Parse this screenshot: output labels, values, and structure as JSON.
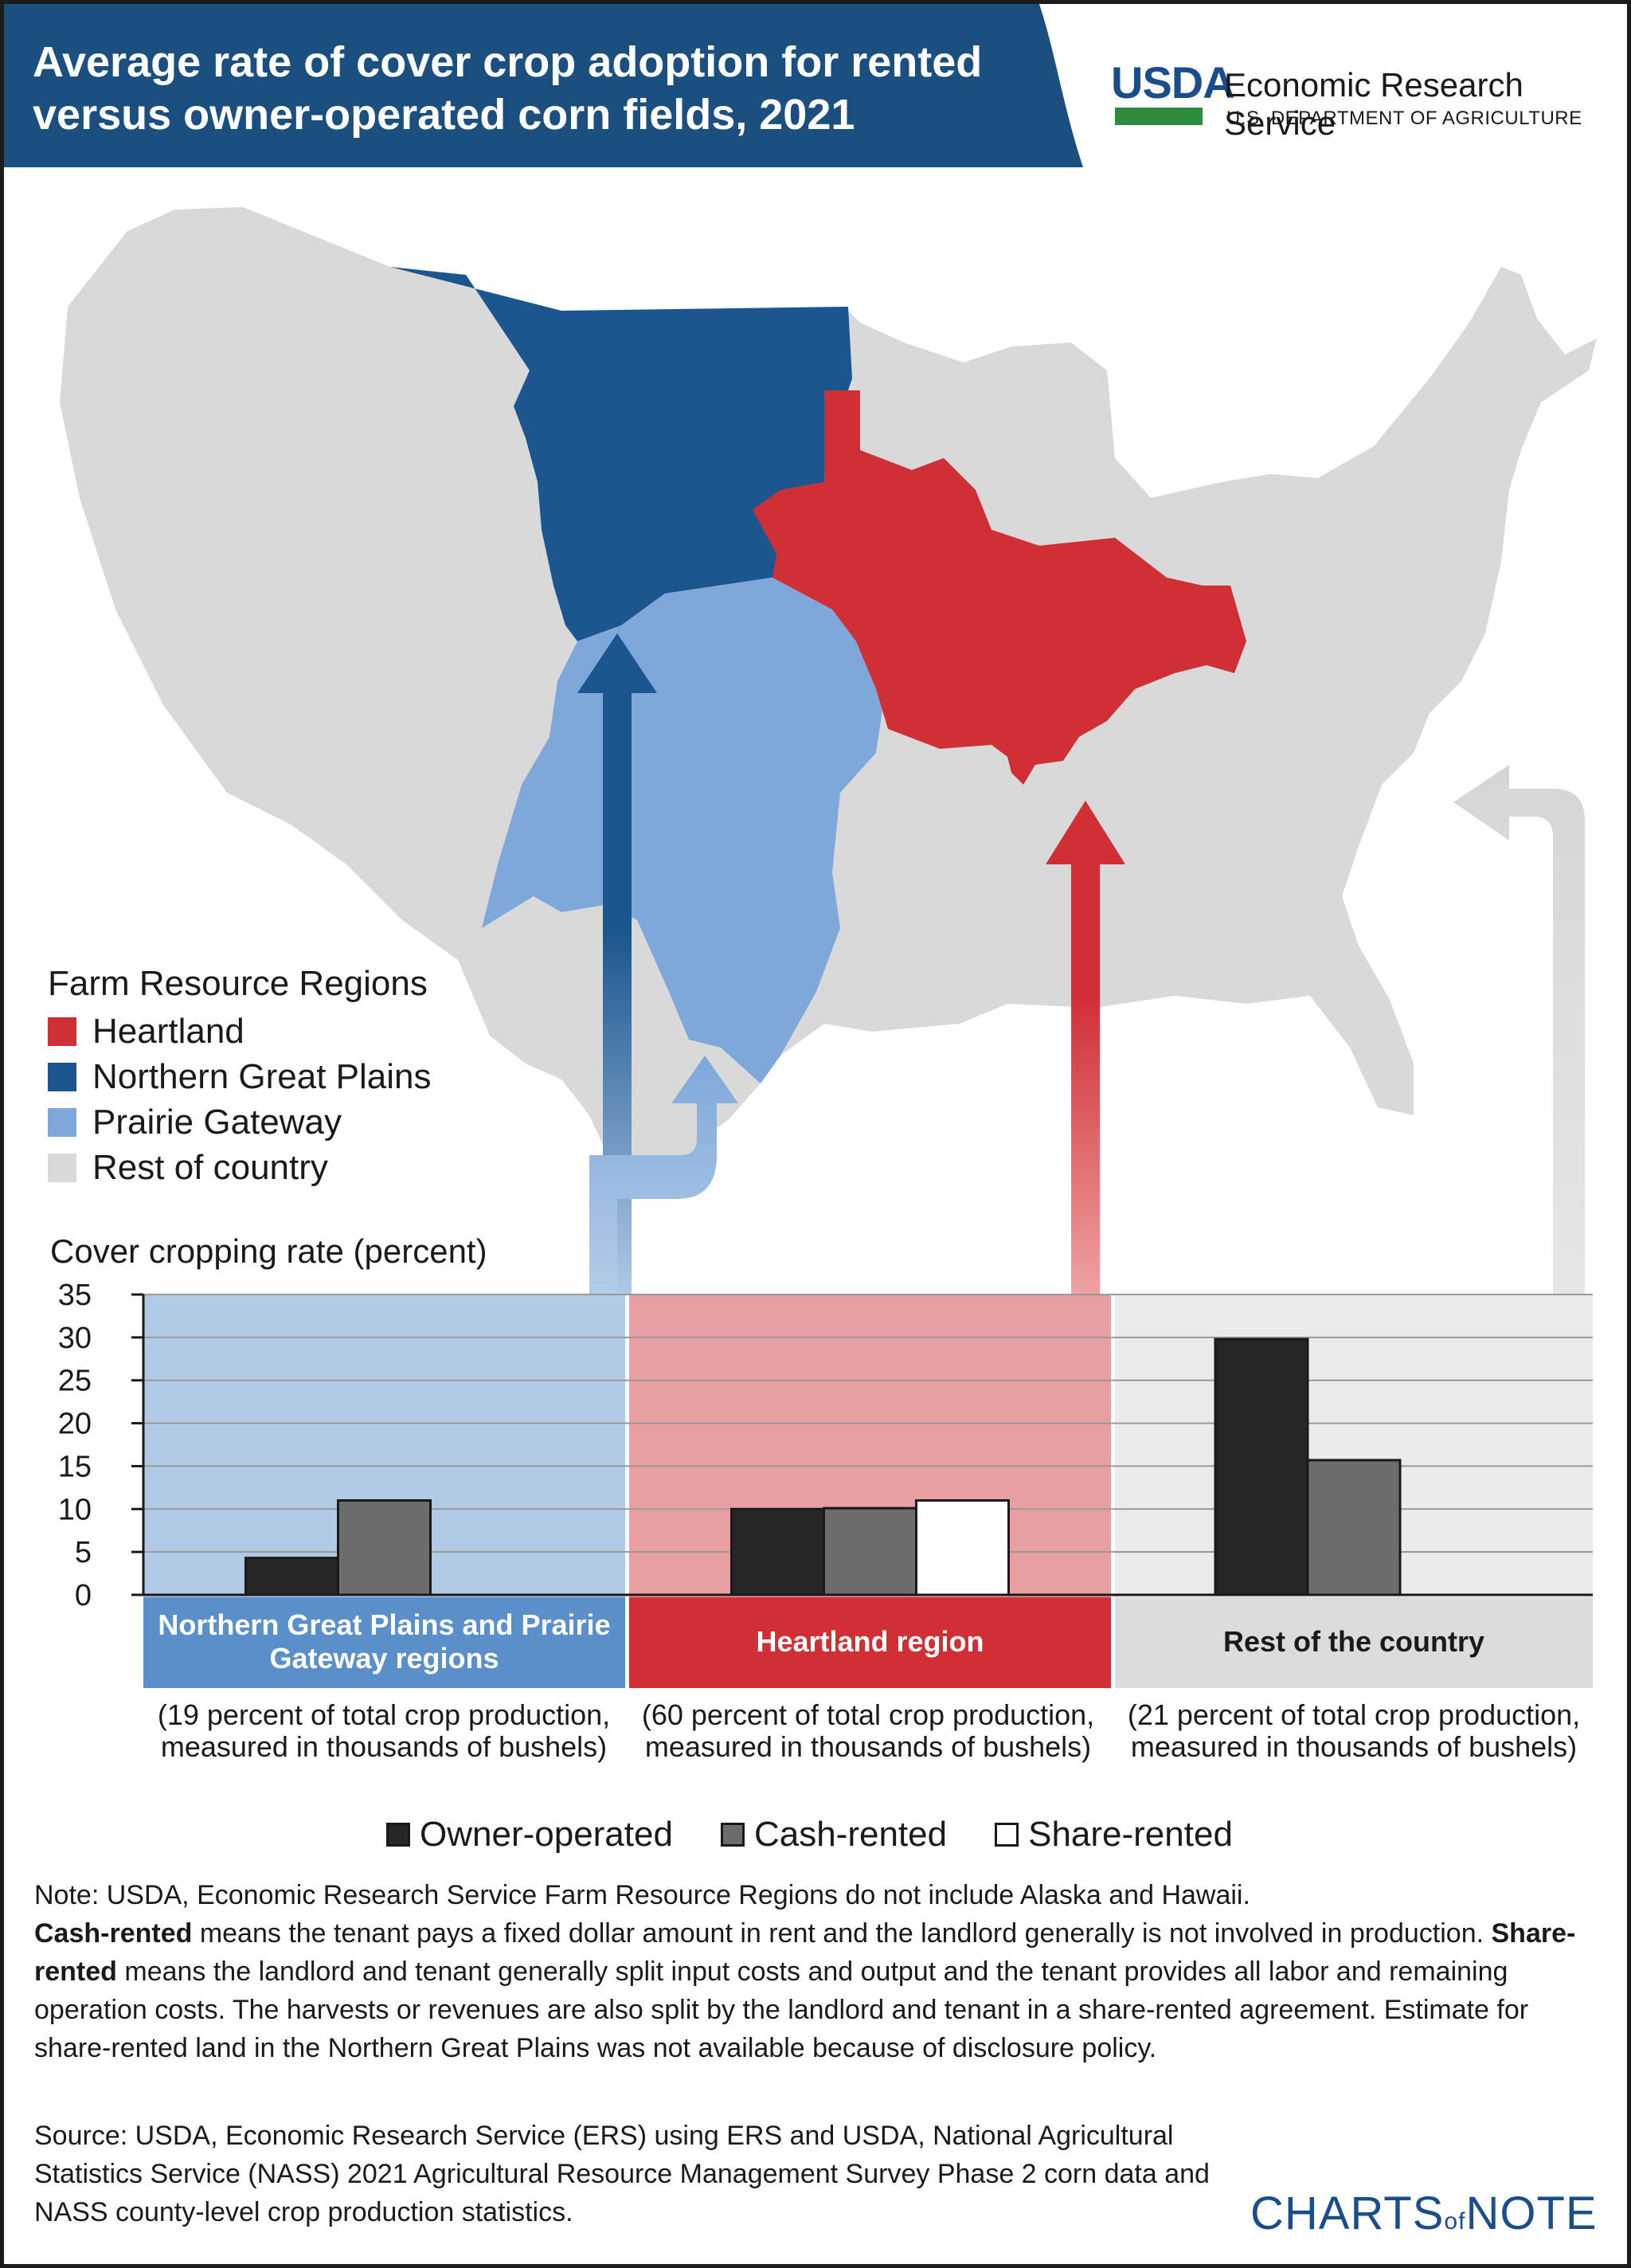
{
  "title": "Average rate of cover crop adoption for rented versus owner-operated corn fields, 2021",
  "branding": {
    "agency_logo": "USDA",
    "agency_name": "Economic Research Service",
    "department": "U.S. DEPARTMENT OF AGRICULTURE",
    "footer_logo_left": "CHARTS",
    "footer_logo_of": "of",
    "footer_logo_right": "NOTE"
  },
  "colors": {
    "header": "#1b4f80",
    "heartland": "#d03035",
    "northern_great_plains": "#1b568e",
    "prairie_gateway": "#7ea8da",
    "rest_of_country": "#d9d9d9",
    "owner_operated": "#262626",
    "cash_rented": "#6d6d6d",
    "share_rented": "#ffffff"
  },
  "map_legend": {
    "title": "Farm Resource Regions",
    "items": [
      {
        "label": "Heartland",
        "color": "#d03035"
      },
      {
        "label": "Northern Great Plains",
        "color": "#1b568e"
      },
      {
        "label": "Prairie Gateway",
        "color": "#7ea8da"
      },
      {
        "label": "Rest of country",
        "color": "#d9d9d9"
      }
    ]
  },
  "chart_data": {
    "type": "bar",
    "ylabel": "Cover cropping rate (percent)",
    "ylim": [
      0,
      35
    ],
    "yticks": [
      0,
      5,
      10,
      15,
      20,
      25,
      30,
      35
    ],
    "grid": true,
    "categories": [
      "Northern Great Plains and Prairie Gateway regions",
      "Heartland region",
      "Rest of the country"
    ],
    "category_notes": [
      "(19 percent of total crop production, measured in thousands of bushels)",
      "(60 percent of total crop production, measured in thousands of bushels)",
      "(21 percent of total crop production, measured in thousands of bushels)"
    ],
    "series": [
      {
        "name": "Owner-operated",
        "values": [
          4.3,
          10.0,
          29.8
        ]
      },
      {
        "name": "Cash-rented",
        "values": [
          11.0,
          10.1,
          15.7
        ]
      },
      {
        "name": "Share-rented",
        "values": [
          null,
          11.0,
          null
        ]
      }
    ],
    "legend_position": "bottom"
  },
  "note": {
    "line1": "Note: USDA, Economic Research Service Farm Resource Regions do not include Alaska and Hawaii.",
    "cash_term": "Cash-rented",
    "cash_def": " means the tenant pays a fixed dollar amount in rent and the landlord generally is not involved in production. ",
    "share_term": "Share-rented",
    "share_def": " means the landlord and tenant generally split input costs and output and the tenant provides all labor and remaining operation costs.  The harvests or revenues are also split by the landlord and tenant in a share-rented agreement. Estimate for share-rented land in the Northern Great Plains was not available because of disclosure policy."
  },
  "source": "Source: USDA, Economic Research Service (ERS) using ERS and USDA, National Agricultural Statistics Service (NASS) 2021 Agricultural Resource Management Survey Phase 2 corn data and NASS county-level crop production statistics."
}
